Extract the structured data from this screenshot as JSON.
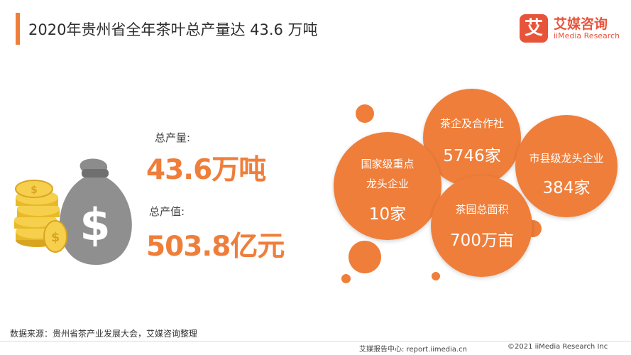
{
  "header": {
    "title": "2020年贵州省全年茶叶总产量达 43.6 万吨",
    "accent": "#ef7e3a"
  },
  "logo": {
    "mark": "艾",
    "name_cn": "艾媒咨询",
    "name_en": "iiMedia Research",
    "color": "#e8543a"
  },
  "stats": {
    "output_label": "总产量:",
    "output_value": "43.6万吨",
    "value_label": "总产值:",
    "value_value": "503.8亿元"
  },
  "illustration": {
    "icon": "money-bag-icon",
    "bag_symbol": "$",
    "coin_symbol": "$"
  },
  "bubbles": [
    {
      "label": "国家级重点",
      "label2": "龙头企业",
      "value": "10家"
    },
    {
      "label": "茶企及合作社",
      "value": "5746家"
    },
    {
      "label": "市县级龙头企业",
      "value": "384家"
    },
    {
      "label": "茶园总面积",
      "value": "700万亩"
    }
  ],
  "source": "数据来源：贵州省茶产业发展大会，艾媒咨询整理",
  "footer": {
    "left": "艾媒报告中心: report.iimedia.cn",
    "right": "©2021  iiMedia Research  Inc"
  }
}
